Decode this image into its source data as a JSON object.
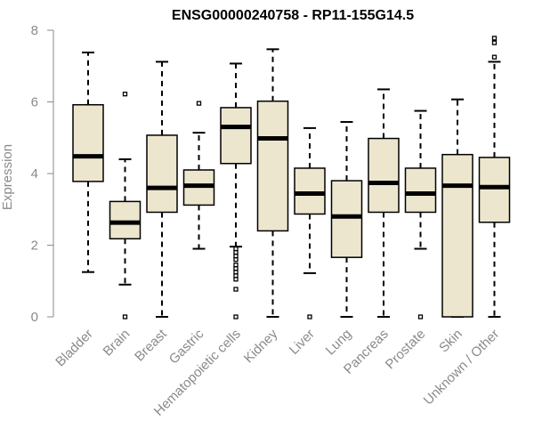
{
  "chart_data": {
    "type": "box",
    "title": "ENSG00000240758 - RP11-155G14.5",
    "xlabel": "",
    "ylabel": "Expression",
    "ylim": [
      0,
      8
    ],
    "yticks": [
      0,
      2,
      4,
      6,
      8
    ],
    "grid": false,
    "box_fill": "#ede6cf",
    "categories": [
      "Bladder",
      "Brain",
      "Breast",
      "Gastric",
      "Hematopoietic cells",
      "Kidney",
      "Liver",
      "Lung",
      "Pancreas",
      "Prostate",
      "Skin",
      "Unknown / Other"
    ],
    "series": [
      {
        "category": "Bladder",
        "whisker_low": 1.25,
        "q1": 3.78,
        "median": 4.48,
        "q3": 5.92,
        "whisker_high": 7.38,
        "outliers": []
      },
      {
        "category": "Brain",
        "whisker_low": 0.9,
        "q1": 2.18,
        "median": 2.63,
        "q3": 3.22,
        "whisker_high": 4.4,
        "outliers": [
          0.0,
          6.22
        ]
      },
      {
        "category": "Breast",
        "whisker_low": 0.0,
        "q1": 2.92,
        "median": 3.6,
        "q3": 5.07,
        "whisker_high": 7.12,
        "outliers": []
      },
      {
        "category": "Gastric",
        "whisker_low": 1.9,
        "q1": 3.12,
        "median": 3.66,
        "q3": 4.1,
        "whisker_high": 5.14,
        "outliers": [
          5.96
        ]
      },
      {
        "category": "Hematopoietic cells",
        "whisker_low": 1.96,
        "q1": 4.28,
        "median": 5.3,
        "q3": 5.84,
        "whisker_high": 7.07,
        "outliers": [
          0.0,
          0.77,
          1.05,
          1.15,
          1.25,
          1.35,
          1.45,
          1.6,
          1.7,
          1.8,
          1.9
        ]
      },
      {
        "category": "Kidney",
        "whisker_low": 0.0,
        "q1": 2.4,
        "median": 4.98,
        "q3": 6.02,
        "whisker_high": 7.47,
        "outliers": []
      },
      {
        "category": "Liver",
        "whisker_low": 1.22,
        "q1": 2.87,
        "median": 3.44,
        "q3": 4.15,
        "whisker_high": 5.27,
        "outliers": [
          0.0
        ]
      },
      {
        "category": "Lung",
        "whisker_low": 0.0,
        "q1": 1.66,
        "median": 2.8,
        "q3": 3.8,
        "whisker_high": 5.44,
        "outliers": []
      },
      {
        "category": "Pancreas",
        "whisker_low": 0.0,
        "q1": 2.92,
        "median": 3.74,
        "q3": 4.98,
        "whisker_high": 6.35,
        "outliers": []
      },
      {
        "category": "Prostate",
        "whisker_low": 1.9,
        "q1": 2.92,
        "median": 3.44,
        "q3": 4.15,
        "whisker_high": 5.75,
        "outliers": [
          0.0
        ]
      },
      {
        "category": "Skin",
        "whisker_low": 0.0,
        "q1": 0.0,
        "median": 3.66,
        "q3": 4.53,
        "whisker_high": 6.07,
        "outliers": []
      },
      {
        "category": "Unknown / Other",
        "whisker_low": 0.0,
        "q1": 2.64,
        "median": 3.62,
        "q3": 4.45,
        "whisker_high": 7.12,
        "outliers": [
          7.25,
          7.65,
          7.78
        ]
      }
    ]
  }
}
